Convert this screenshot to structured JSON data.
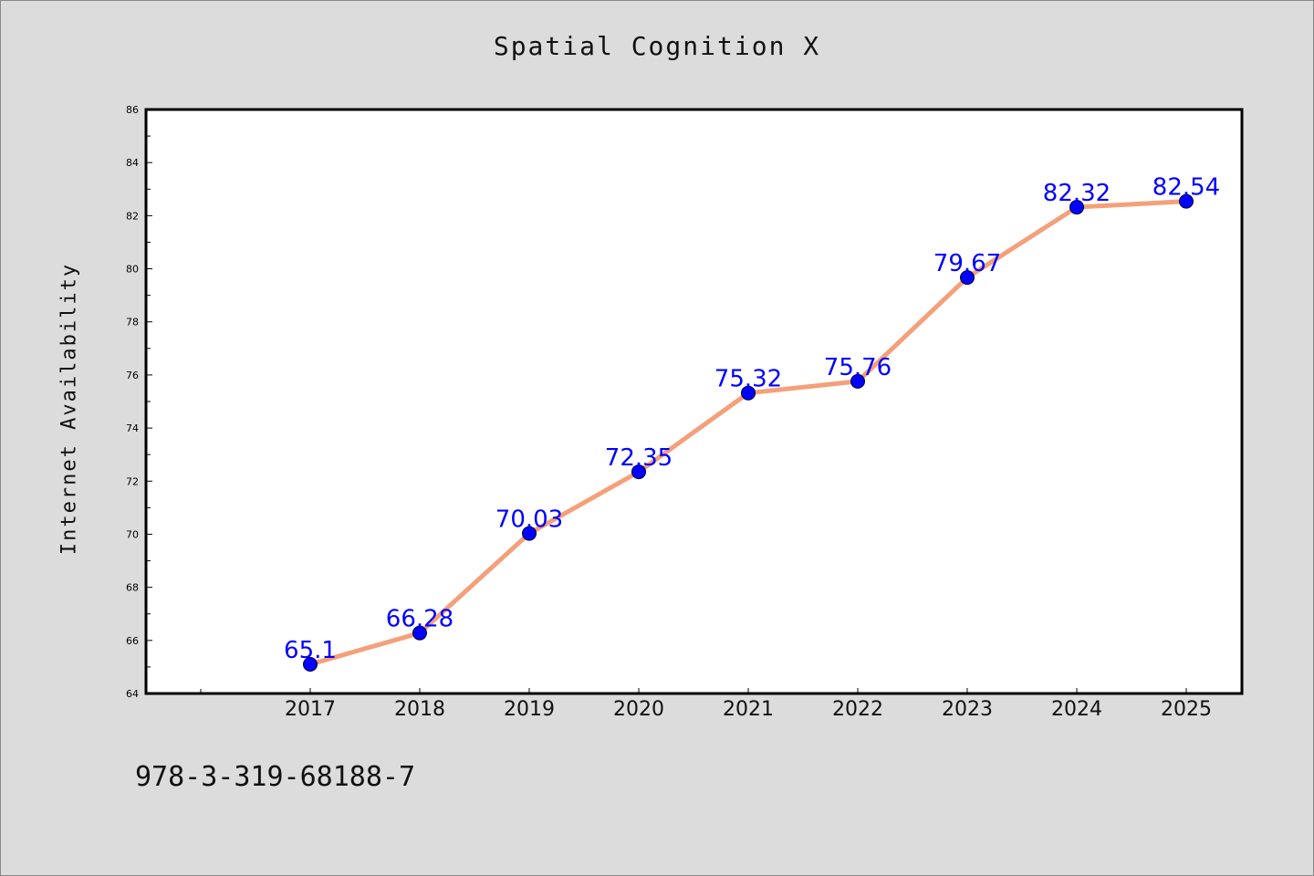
{
  "chart_data": {
    "type": "line",
    "title": "Spatial Cognition X",
    "ylabel": "Internet Availability",
    "xlabel": "",
    "categories": [
      "2017",
      "2018",
      "2019",
      "2020",
      "2021",
      "2022",
      "2023",
      "2024",
      "2025"
    ],
    "series": [
      {
        "values": [
          65.1,
          66.28,
          70.03,
          72.35,
          75.32,
          75.76,
          79.67,
          82.32,
          82.54
        ]
      }
    ],
    "data_labels": [
      "65.1",
      "66.28",
      "70.03",
      "72.35",
      "75.32",
      "75.76",
      "79.67",
      "82.32",
      "82.54"
    ],
    "ylim": [
      64,
      86
    ],
    "yticks": [
      64,
      66,
      68,
      70,
      72,
      74,
      76,
      78,
      80,
      82,
      84,
      86
    ],
    "grid": false,
    "legend": "none",
    "colors": {
      "line": "#f4a07a",
      "marker": "#0000ff",
      "data_label": "#0000ff",
      "axes": "#000000",
      "plot_bg": "#ffffff",
      "page_bg": "#dcdcdc"
    }
  },
  "footer": {
    "isbn": "978-3-319-68188-7"
  }
}
